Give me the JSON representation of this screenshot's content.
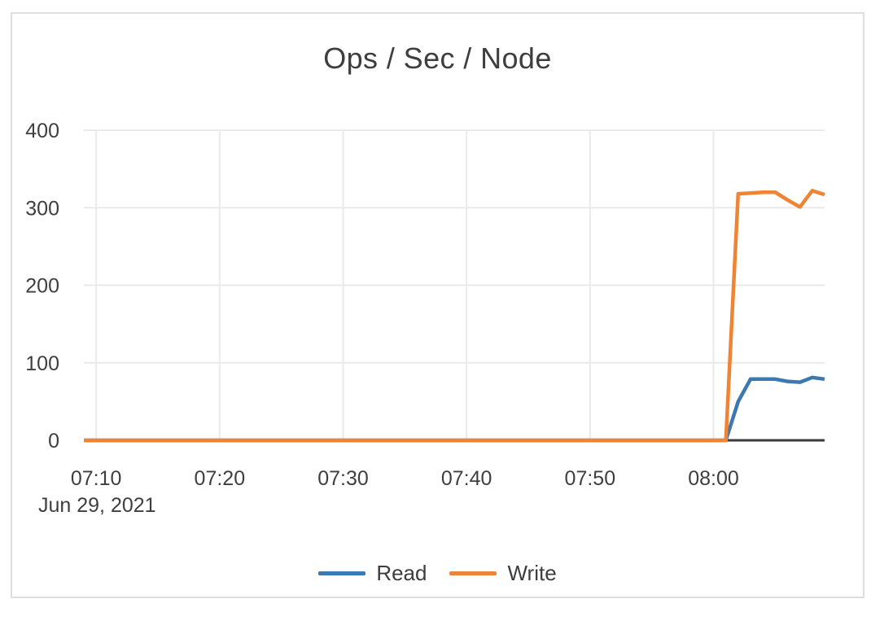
{
  "chart_data": {
    "type": "line",
    "title": "Ops / Sec / Node",
    "x_axis": {
      "date_label": "Jun 29, 2021",
      "tick_labels": [
        "07:10",
        "07:20",
        "07:30",
        "07:40",
        "07:50",
        "08:00"
      ],
      "range": [
        "07:09",
        "08:09"
      ]
    },
    "y_axis": {
      "tick_labels": [
        "0",
        "100",
        "200",
        "300",
        "400"
      ],
      "ylim": [
        0,
        400
      ]
    },
    "grid": true,
    "legend": {
      "position": "bottom",
      "entries": [
        "Read",
        "Write"
      ]
    },
    "x": [
      "07:09",
      "07:10",
      "07:11",
      "07:12",
      "07:13",
      "07:14",
      "07:15",
      "07:16",
      "07:17",
      "07:18",
      "07:19",
      "07:20",
      "07:21",
      "07:22",
      "07:23",
      "07:24",
      "07:25",
      "07:26",
      "07:27",
      "07:28",
      "07:29",
      "07:30",
      "07:31",
      "07:32",
      "07:33",
      "07:34",
      "07:35",
      "07:36",
      "07:37",
      "07:38",
      "07:39",
      "07:40",
      "07:41",
      "07:42",
      "07:43",
      "07:44",
      "07:45",
      "07:46",
      "07:47",
      "07:48",
      "07:49",
      "07:50",
      "07:51",
      "07:52",
      "07:53",
      "07:54",
      "07:55",
      "07:56",
      "07:57",
      "07:58",
      "07:59",
      "08:00",
      "08:01",
      "08:02",
      "08:03",
      "08:04",
      "08:05",
      "08:06",
      "08:07",
      "08:08",
      "08:09"
    ],
    "series": [
      {
        "name": "Read",
        "color": "#3d78ae",
        "values": [
          0,
          0,
          0,
          0,
          0,
          0,
          0,
          0,
          0,
          0,
          0,
          0,
          0,
          0,
          0,
          0,
          0,
          0,
          0,
          0,
          0,
          0,
          0,
          0,
          0,
          0,
          0,
          0,
          0,
          0,
          0,
          0,
          0,
          0,
          0,
          0,
          0,
          0,
          0,
          0,
          0,
          0,
          0,
          0,
          0,
          0,
          0,
          0,
          0,
          0,
          0,
          0,
          0,
          50,
          79,
          79,
          79,
          76,
          75,
          81,
          79
        ]
      },
      {
        "name": "Write",
        "color": "#ee8434",
        "values": [
          0,
          0,
          0,
          0,
          0,
          0,
          0,
          0,
          0,
          0,
          0,
          0,
          0,
          0,
          0,
          0,
          0,
          0,
          0,
          0,
          0,
          0,
          0,
          0,
          0,
          0,
          0,
          0,
          0,
          0,
          0,
          0,
          0,
          0,
          0,
          0,
          0,
          0,
          0,
          0,
          0,
          0,
          0,
          0,
          0,
          0,
          0,
          0,
          0,
          0,
          0,
          0,
          0,
          318,
          319,
          320,
          320,
          310,
          301,
          322,
          317
        ]
      }
    ]
  },
  "colors": {
    "card_border": "#dedede",
    "grid_line": "#eaeaea",
    "axis_line": "#3b3b3b",
    "text": "#3f3f3f"
  }
}
